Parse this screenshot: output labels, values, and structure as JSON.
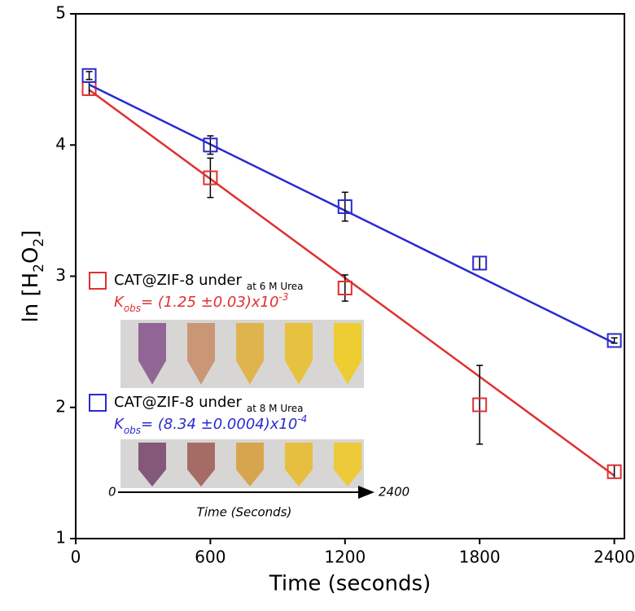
{
  "chart_data": {
    "type": "scatter",
    "xlabel": "Time (seconds)",
    "ylabel": [
      "ln [H",
      "2",
      "O",
      "2",
      "]"
    ],
    "xlim": [
      0,
      2445
    ],
    "ylim": [
      1,
      5
    ],
    "xticks": [
      0,
      600,
      1200,
      1800,
      2400
    ],
    "yticks": [
      1,
      2,
      3,
      4,
      5
    ],
    "series": [
      {
        "name": "CAT@ZIF-8 under",
        "name_sub": "at 6 M Urea",
        "color": "#e03030",
        "kobs": {
          "symbol": "K",
          "sub": "obs",
          "text": "= (1.25 ±0.03)x10",
          "sup": "-3"
        },
        "x": [
          60,
          600,
          1200,
          1800,
          2400
        ],
        "values": [
          4.43,
          3.75,
          2.91,
          2.02,
          1.51
        ],
        "errors": [
          0.05,
          0.15,
          0.1,
          0.3,
          0.05
        ],
        "fit_x": [
          60,
          2400
        ],
        "fit_values": [
          4.42,
          1.48
        ]
      },
      {
        "name": "CAT@ZIF-8 under",
        "name_sub": "at 8 M Urea",
        "color": "#2a2ad0",
        "kobs": {
          "symbol": "K",
          "sub": "obs",
          "text": "= (8.34 ±0.0004)x10",
          "sup": "-4"
        },
        "x": [
          60,
          600,
          1200,
          1800,
          2400
        ],
        "values": [
          4.53,
          4.0,
          3.53,
          3.1,
          2.51
        ],
        "errors": [
          0.03,
          0.07,
          0.11,
          0.05,
          0.02
        ],
        "fit_x": [
          60,
          2400
        ],
        "fit_values": [
          4.46,
          2.49
        ]
      }
    ],
    "inset": {
      "start": "0",
      "end": "2400",
      "label": "Time (Seconds)"
    }
  }
}
